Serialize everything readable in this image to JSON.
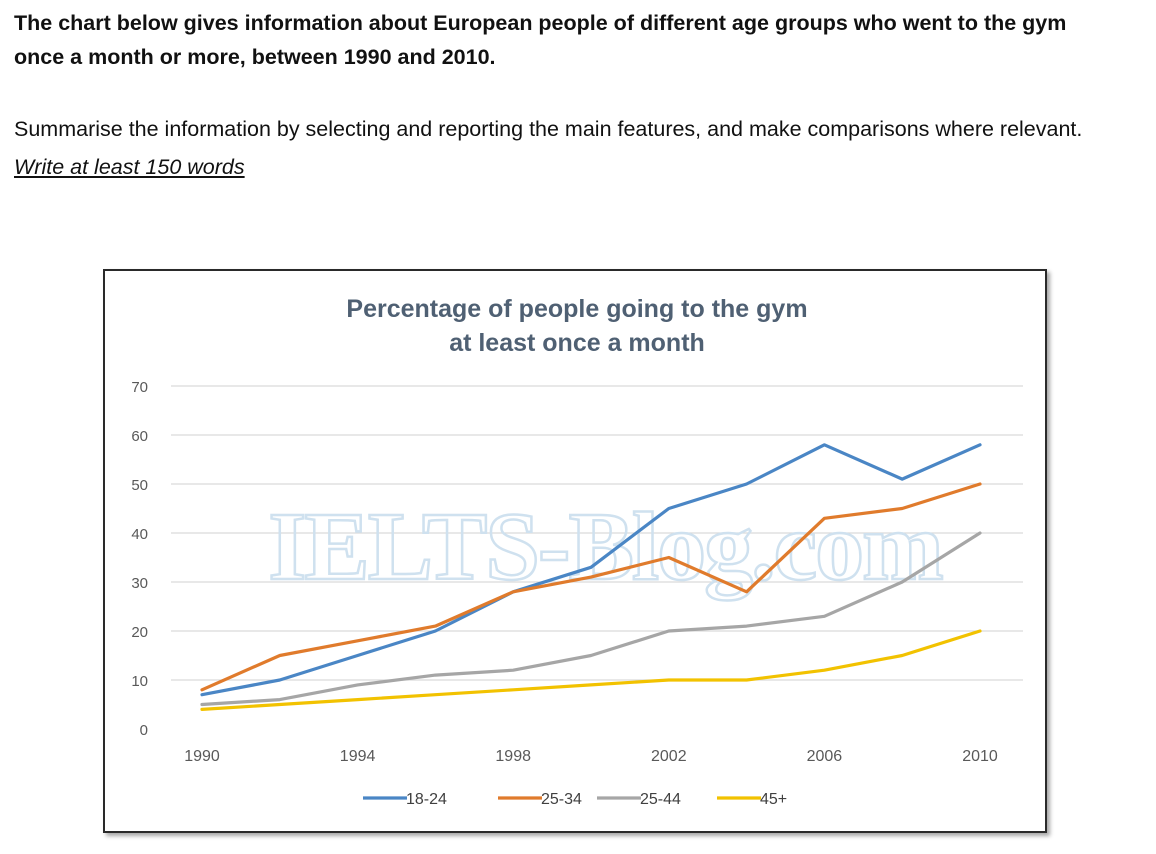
{
  "task": {
    "intro": "The chart below gives information about European people of different age groups who went to the gym once a month or more, between 1990 and 2010.",
    "instruction": "Summarise the information by selecting and reporting the main features, and make comparisons where relevant.",
    "min_words": "Write at least 150 words"
  },
  "watermark": "IELTS-Blog.com",
  "colors": {
    "18-24": "#4a86c5",
    "25-34": "#e07b2c",
    "25-44": "#a6a6a6",
    "45+": "#f2c200",
    "grid": "#d9d9d9",
    "title": "#4f6073"
  },
  "chart_data": {
    "type": "line",
    "title": "Percentage of people going to the gym",
    "subtitle": "at least once a month",
    "xlabel": "",
    "ylabel": "",
    "x": [
      1990,
      1992,
      1994,
      1996,
      1998,
      2000,
      2002,
      2004,
      2006,
      2008,
      2010
    ],
    "x_ticks": [
      "1990",
      "1994",
      "1998",
      "2002",
      "2006",
      "2010"
    ],
    "y_ticks": [
      "0",
      "10",
      "20",
      "30",
      "40",
      "50",
      "60",
      "70"
    ],
    "ylim": [
      0,
      70
    ],
    "grid": true,
    "legend_position": "bottom",
    "series": [
      {
        "name": "18-24",
        "values": [
          7,
          10,
          15,
          20,
          28,
          33,
          45,
          50,
          58,
          51,
          58
        ]
      },
      {
        "name": "25-34",
        "values": [
          8,
          15,
          18,
          21,
          28,
          31,
          35,
          28,
          43,
          45,
          50
        ]
      },
      {
        "name": "25-44",
        "values": [
          5,
          6,
          9,
          11,
          12,
          15,
          20,
          21,
          23,
          30,
          40
        ]
      },
      {
        "name": "45+",
        "values": [
          4,
          5,
          6,
          7,
          8,
          9,
          10,
          10,
          12,
          15,
          20
        ]
      }
    ]
  }
}
